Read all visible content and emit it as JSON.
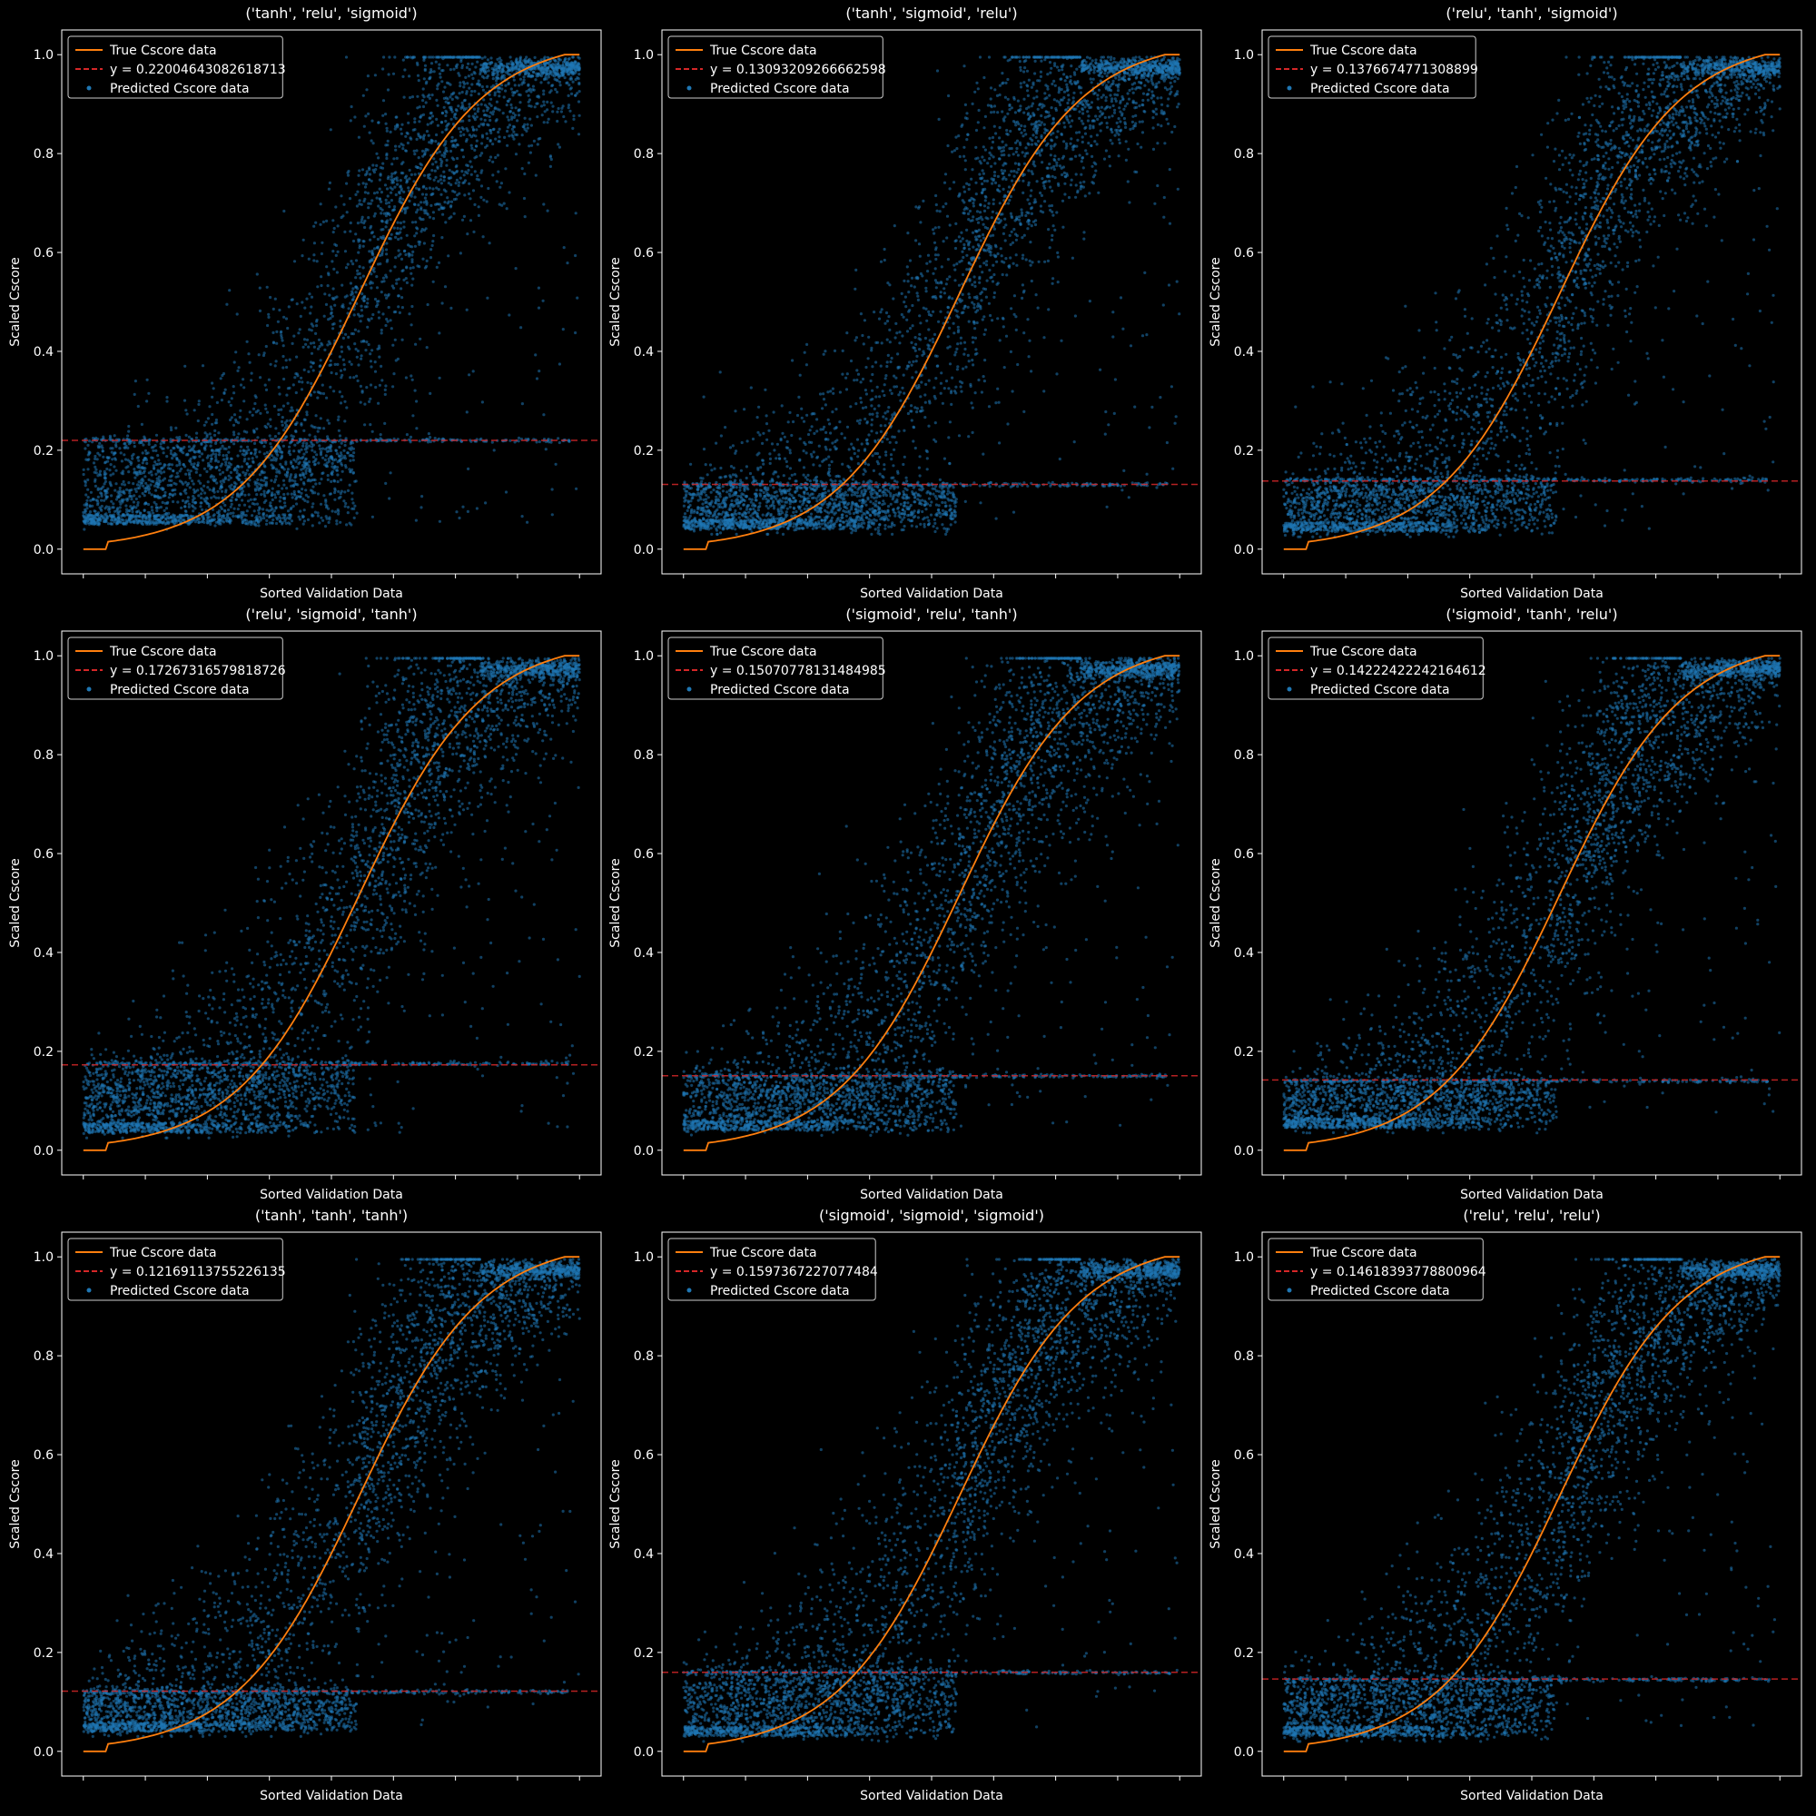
{
  "figure": {
    "background": "#000000",
    "colors": {
      "true_line": "#ff7f0e",
      "hline": "#d62728",
      "points": "#1f77b4",
      "axes": "#ffffff"
    }
  },
  "chart_data": [
    {
      "type": "scatter",
      "title": "('tanh', 'relu', 'sigmoid')",
      "xlabel": "Sorted Validation Data",
      "ylabel": "Scaled Cscore",
      "ylim": [
        -0.05,
        1.05
      ],
      "yticks": [
        "0.0",
        "0.2",
        "0.4",
        "0.6",
        "0.8",
        "1.0"
      ],
      "xtick_count": 9,
      "x_tick_labels_visible": false,
      "grid": false,
      "legend_position": "top-left",
      "series": [
        {
          "name": "True Cscore data",
          "kind": "line",
          "values_desc": "sorted, 0.0 flat start, sigmoid rise to 1.0 at end"
        },
        {
          "name": "y = 0.22004643082618713",
          "kind": "hline",
          "y": 0.22004643082618713
        },
        {
          "name": "Predicted Cscore data",
          "kind": "scatter",
          "band_floor": 0.05,
          "band_y": 0.22
        }
      ]
    },
    {
      "type": "scatter",
      "title": "('tanh', 'sigmoid', 'relu')",
      "xlabel": "Sorted Validation Data",
      "ylabel": "Scaled Cscore",
      "ylim": [
        -0.05,
        1.05
      ],
      "yticks": [
        "0.0",
        "0.2",
        "0.4",
        "0.6",
        "0.8",
        "1.0"
      ],
      "xtick_count": 9,
      "x_tick_labels_visible": false,
      "grid": false,
      "legend_position": "top-left",
      "series": [
        {
          "name": "True Cscore data",
          "kind": "line"
        },
        {
          "name": "y = 0.13093209266662598",
          "kind": "hline",
          "y": 0.13093209266662598
        },
        {
          "name": "Predicted Cscore data",
          "kind": "scatter",
          "band_floor": 0.04,
          "band_y": 0.13
        }
      ]
    },
    {
      "type": "scatter",
      "title": "('relu', 'tanh', 'sigmoid')",
      "xlabel": "Sorted Validation Data",
      "ylabel": "Scaled Cscore",
      "ylim": [
        -0.05,
        1.05
      ],
      "yticks": [
        "0.0",
        "0.2",
        "0.4",
        "0.6",
        "0.8",
        "1.0"
      ],
      "xtick_count": 9,
      "x_tick_labels_visible": false,
      "grid": false,
      "legend_position": "top-left",
      "series": [
        {
          "name": "True Cscore data",
          "kind": "line"
        },
        {
          "name": "y = 0.1376674771308899",
          "kind": "hline",
          "y": 0.1376674771308899
        },
        {
          "name": "Predicted Cscore data",
          "kind": "scatter",
          "band_floor": 0.035,
          "band_y": 0.14
        }
      ]
    },
    {
      "type": "scatter",
      "title": "('relu', 'sigmoid', 'tanh')",
      "xlabel": "Sorted Validation Data",
      "ylabel": "Scaled Cscore",
      "ylim": [
        -0.05,
        1.05
      ],
      "yticks": [
        "0.0",
        "0.2",
        "0.4",
        "0.6",
        "0.8",
        "1.0"
      ],
      "xtick_count": 9,
      "x_tick_labels_visible": false,
      "grid": false,
      "legend_position": "top-left",
      "series": [
        {
          "name": "True Cscore data",
          "kind": "line"
        },
        {
          "name": "y = 0.17267316579818726",
          "kind": "hline",
          "y": 0.17267316579818726
        },
        {
          "name": "Predicted Cscore data",
          "kind": "scatter",
          "band_floor": 0.035,
          "band_y": 0.175
        }
      ]
    },
    {
      "type": "scatter",
      "title": "('sigmoid', 'relu', 'tanh')",
      "xlabel": "Sorted Validation Data",
      "ylabel": "Scaled Cscore",
      "ylim": [
        -0.05,
        1.05
      ],
      "yticks": [
        "0.0",
        "0.2",
        "0.4",
        "0.6",
        "0.8",
        "1.0"
      ],
      "xtick_count": 9,
      "x_tick_labels_visible": false,
      "grid": false,
      "legend_position": "top-left",
      "series": [
        {
          "name": "True Cscore data",
          "kind": "line"
        },
        {
          "name": "y = 0.15070778131484985",
          "kind": "hline",
          "y": 0.15070778131484985
        },
        {
          "name": "Predicted Cscore data",
          "kind": "scatter",
          "band_floor": 0.04,
          "band_y": 0.15
        }
      ]
    },
    {
      "type": "scatter",
      "title": "('sigmoid', 'tanh', 'relu')",
      "xlabel": "Sorted Validation Data",
      "ylabel": "Scaled Cscore",
      "ylim": [
        -0.05,
        1.05
      ],
      "yticks": [
        "0.0",
        "0.2",
        "0.4",
        "0.6",
        "0.8",
        "1.0"
      ],
      "xtick_count": 9,
      "x_tick_labels_visible": false,
      "grid": false,
      "legend_position": "top-left",
      "series": [
        {
          "name": "True Cscore data",
          "kind": "line"
        },
        {
          "name": "y = 0.14222422242164612",
          "kind": "hline",
          "y": 0.14222422242164612
        },
        {
          "name": "Predicted Cscore data",
          "kind": "scatter",
          "band_floor": 0.045,
          "band_y": 0.14
        }
      ]
    },
    {
      "type": "scatter",
      "title": "('tanh', 'tanh', 'tanh')",
      "xlabel": "Sorted Validation Data",
      "ylabel": "Scaled Cscore",
      "ylim": [
        -0.05,
        1.05
      ],
      "yticks": [
        "0.0",
        "0.2",
        "0.4",
        "0.6",
        "0.8",
        "1.0"
      ],
      "xtick_count": 9,
      "x_tick_labels_visible": false,
      "grid": false,
      "legend_position": "top-left",
      "series": [
        {
          "name": "True Cscore data",
          "kind": "line"
        },
        {
          "name": "y = 0.12169113755226135",
          "kind": "hline",
          "y": 0.12169113755226135
        },
        {
          "name": "Predicted Cscore data",
          "kind": "scatter",
          "band_floor": 0.04,
          "band_y": 0.12
        }
      ]
    },
    {
      "type": "scatter",
      "title": "('sigmoid', 'sigmoid', 'sigmoid')",
      "xlabel": "Sorted Validation Data",
      "ylabel": "Scaled Cscore",
      "ylim": [
        -0.05,
        1.05
      ],
      "yticks": [
        "0.0",
        "0.2",
        "0.4",
        "0.6",
        "0.8",
        "1.0"
      ],
      "xtick_count": 9,
      "x_tick_labels_visible": false,
      "grid": false,
      "legend_position": "top-left",
      "series": [
        {
          "name": "True Cscore data",
          "kind": "line"
        },
        {
          "name": "y = 0.1597367227077484",
          "kind": "hline",
          "y": 0.1597367227077484
        },
        {
          "name": "Predicted Cscore data",
          "kind": "scatter",
          "band_floor": 0.03,
          "band_y": 0.16
        }
      ]
    },
    {
      "type": "scatter",
      "title": "('relu', 'relu', 'relu')",
      "xlabel": "Sorted Validation Data",
      "ylabel": "Scaled Cscore",
      "ylim": [
        -0.05,
        1.05
      ],
      "yticks": [
        "0.0",
        "0.2",
        "0.4",
        "0.6",
        "0.8",
        "1.0"
      ],
      "xtick_count": 9,
      "x_tick_labels_visible": false,
      "grid": false,
      "legend_position": "top-left",
      "series": [
        {
          "name": "True Cscore data",
          "kind": "line"
        },
        {
          "name": "y = 0.14618393778800964",
          "kind": "hline",
          "y": 0.14618393778800964
        },
        {
          "name": "Predicted Cscore data",
          "kind": "scatter",
          "band_floor": 0.03,
          "band_y": 0.145
        }
      ]
    }
  ]
}
